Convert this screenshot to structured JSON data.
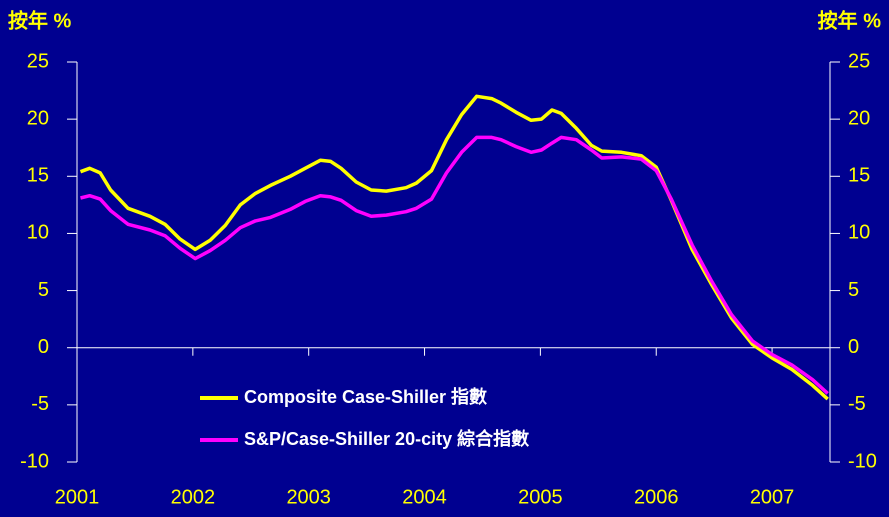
{
  "chart_data": {
    "type": "line",
    "ylabel": "按年 %",
    "y2label": "按年 %",
    "x": [
      2001.03,
      2001.11,
      2001.2,
      2001.29,
      2001.44,
      2001.63,
      2001.76,
      2001.89,
      2002.02,
      2002.15,
      2002.28,
      2002.41,
      2002.54,
      2002.67,
      2002.84,
      2002.97,
      2003.1,
      2003.19,
      2003.28,
      2003.41,
      2003.54,
      2003.67,
      2003.84,
      2003.93,
      2004.06,
      2004.19,
      2004.32,
      2004.45,
      2004.58,
      2004.66,
      2004.79,
      2004.92,
      2005.01,
      2005.1,
      2005.18,
      2005.31,
      2005.44,
      2005.53,
      2005.7,
      2005.87,
      2006.0,
      2006.13,
      2006.31,
      2006.48,
      2006.65,
      2006.83,
      2007.0,
      2007.17,
      2007.35,
      2007.48
    ],
    "series": [
      {
        "name": "Composite Case-Shiller 指數",
        "color": "#ffff00",
        "values": [
          15.4,
          15.7,
          15.3,
          13.8,
          12.2,
          11.5,
          10.8,
          9.5,
          8.6,
          9.4,
          10.7,
          12.5,
          13.5,
          14.2,
          15.0,
          15.7,
          16.4,
          16.3,
          15.7,
          14.5,
          13.8,
          13.7,
          14.0,
          14.4,
          15.5,
          18.2,
          20.4,
          22.0,
          21.8,
          21.4,
          20.6,
          19.9,
          20.0,
          20.8,
          20.5,
          19.2,
          17.7,
          17.2,
          17.1,
          16.8,
          15.8,
          12.9,
          8.6,
          5.5,
          2.6,
          0.3,
          -0.9,
          -1.9,
          -3.3,
          -4.5
        ]
      },
      {
        "name": "S&P/Case-Shiller 20-city 綜合指數",
        "color": "#ff00ff",
        "values": [
          13.1,
          13.3,
          13.0,
          12.0,
          10.8,
          10.3,
          9.8,
          8.7,
          7.8,
          8.5,
          9.4,
          10.5,
          11.1,
          11.4,
          12.1,
          12.8,
          13.3,
          13.2,
          12.9,
          12.0,
          11.5,
          11.6,
          11.9,
          12.2,
          13.0,
          15.3,
          17.1,
          18.4,
          18.4,
          18.2,
          17.6,
          17.1,
          17.3,
          17.9,
          18.4,
          18.2,
          17.3,
          16.6,
          16.7,
          16.5,
          15.5,
          13.0,
          9.0,
          5.8,
          2.9,
          0.6,
          -0.6,
          -1.5,
          -2.8,
          -4.0
        ]
      }
    ],
    "xlim": [
      2001,
      2007.5
    ],
    "xticks": [
      2001,
      2002,
      2003,
      2004,
      2005,
      2006,
      2007
    ],
    "ylim": [
      -10,
      25
    ],
    "yticks": [
      -10,
      -5,
      0,
      5,
      10,
      15,
      20,
      25
    ],
    "y2lim": [
      -10,
      25
    ],
    "y2ticks": [
      -10,
      -5,
      0,
      5,
      10,
      15,
      20,
      25
    ]
  }
}
